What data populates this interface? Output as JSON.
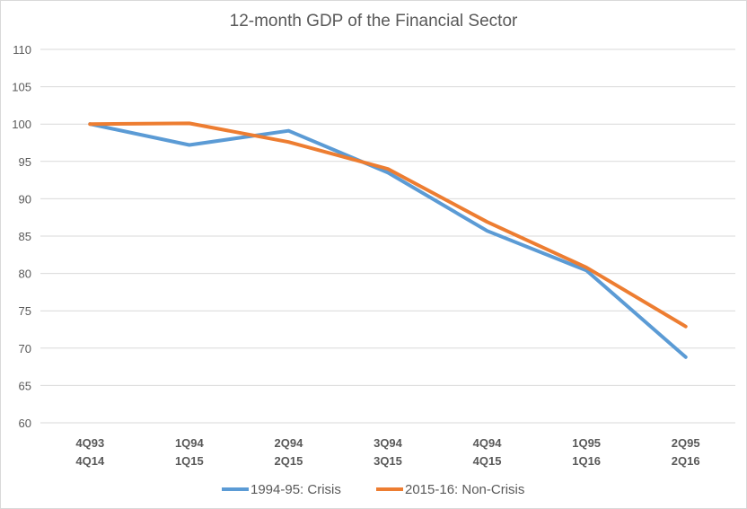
{
  "chart_data": {
    "type": "line",
    "title": "12-month GDP of the Financial Sector",
    "xlabel": "",
    "ylabel": "",
    "ylim": [
      60,
      110
    ],
    "yticks": [
      60,
      65,
      70,
      75,
      80,
      85,
      90,
      95,
      100,
      105,
      110
    ],
    "categories": [
      [
        "4Q93",
        "4Q14"
      ],
      [
        "1Q94",
        "1Q15"
      ],
      [
        "2Q94",
        "2Q15"
      ],
      [
        "3Q94",
        "3Q15"
      ],
      [
        "4Q94",
        "4Q15"
      ],
      [
        "1Q95",
        "1Q16"
      ],
      [
        "2Q95",
        "2Q16"
      ]
    ],
    "series": [
      {
        "name": "1994-95: Crisis",
        "color": "#5b9bd5",
        "values": [
          100.0,
          97.2,
          99.1,
          93.5,
          85.7,
          80.4,
          68.8
        ]
      },
      {
        "name": "2015-16: Non-Crisis",
        "color": "#ed7d31",
        "values": [
          100.0,
          100.1,
          97.6,
          94.0,
          86.9,
          80.8,
          72.9
        ]
      }
    ],
    "grid": true,
    "legend": "bottom"
  }
}
